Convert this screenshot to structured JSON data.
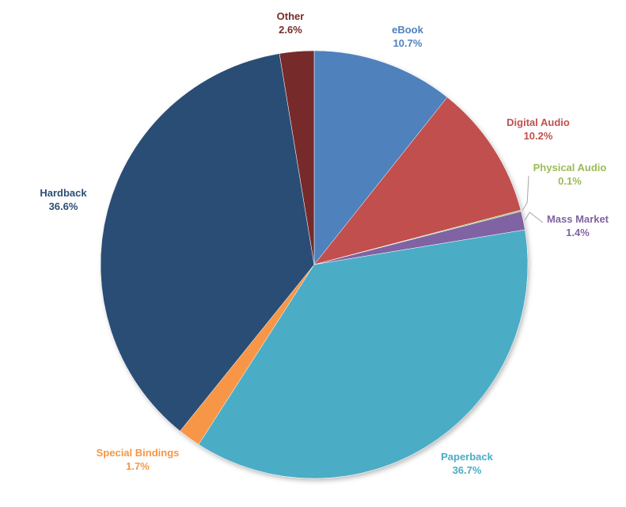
{
  "chart_data": {
    "type": "pie",
    "title": "",
    "start_angle_deg": 0,
    "direction": "clockwise",
    "slices": [
      {
        "label": "eBook",
        "value": 10.7,
        "value_text": "10.7%",
        "color": "#4F81BD"
      },
      {
        "label": "Digital Audio",
        "value": 10.2,
        "value_text": "10.2%",
        "color": "#C0504D"
      },
      {
        "label": "Physical Audio",
        "value": 0.1,
        "value_text": "0.1%",
        "color": "#9BBB59"
      },
      {
        "label": "Mass Market",
        "value": 1.4,
        "value_text": "1.4%",
        "color": "#8064A2"
      },
      {
        "label": "Paperback",
        "value": 36.7,
        "value_text": "36.7%",
        "color": "#4BACC6"
      },
      {
        "label": "Special Bindings",
        "value": 1.7,
        "value_text": "1.7%",
        "color": "#F79646"
      },
      {
        "label": "Hardback",
        "value": 36.6,
        "value_text": "36.6%",
        "color": "#2C4D75"
      },
      {
        "label": "Other",
        "value": 2.6,
        "value_text": "2.6%",
        "color": "#772C2A"
      }
    ]
  }
}
